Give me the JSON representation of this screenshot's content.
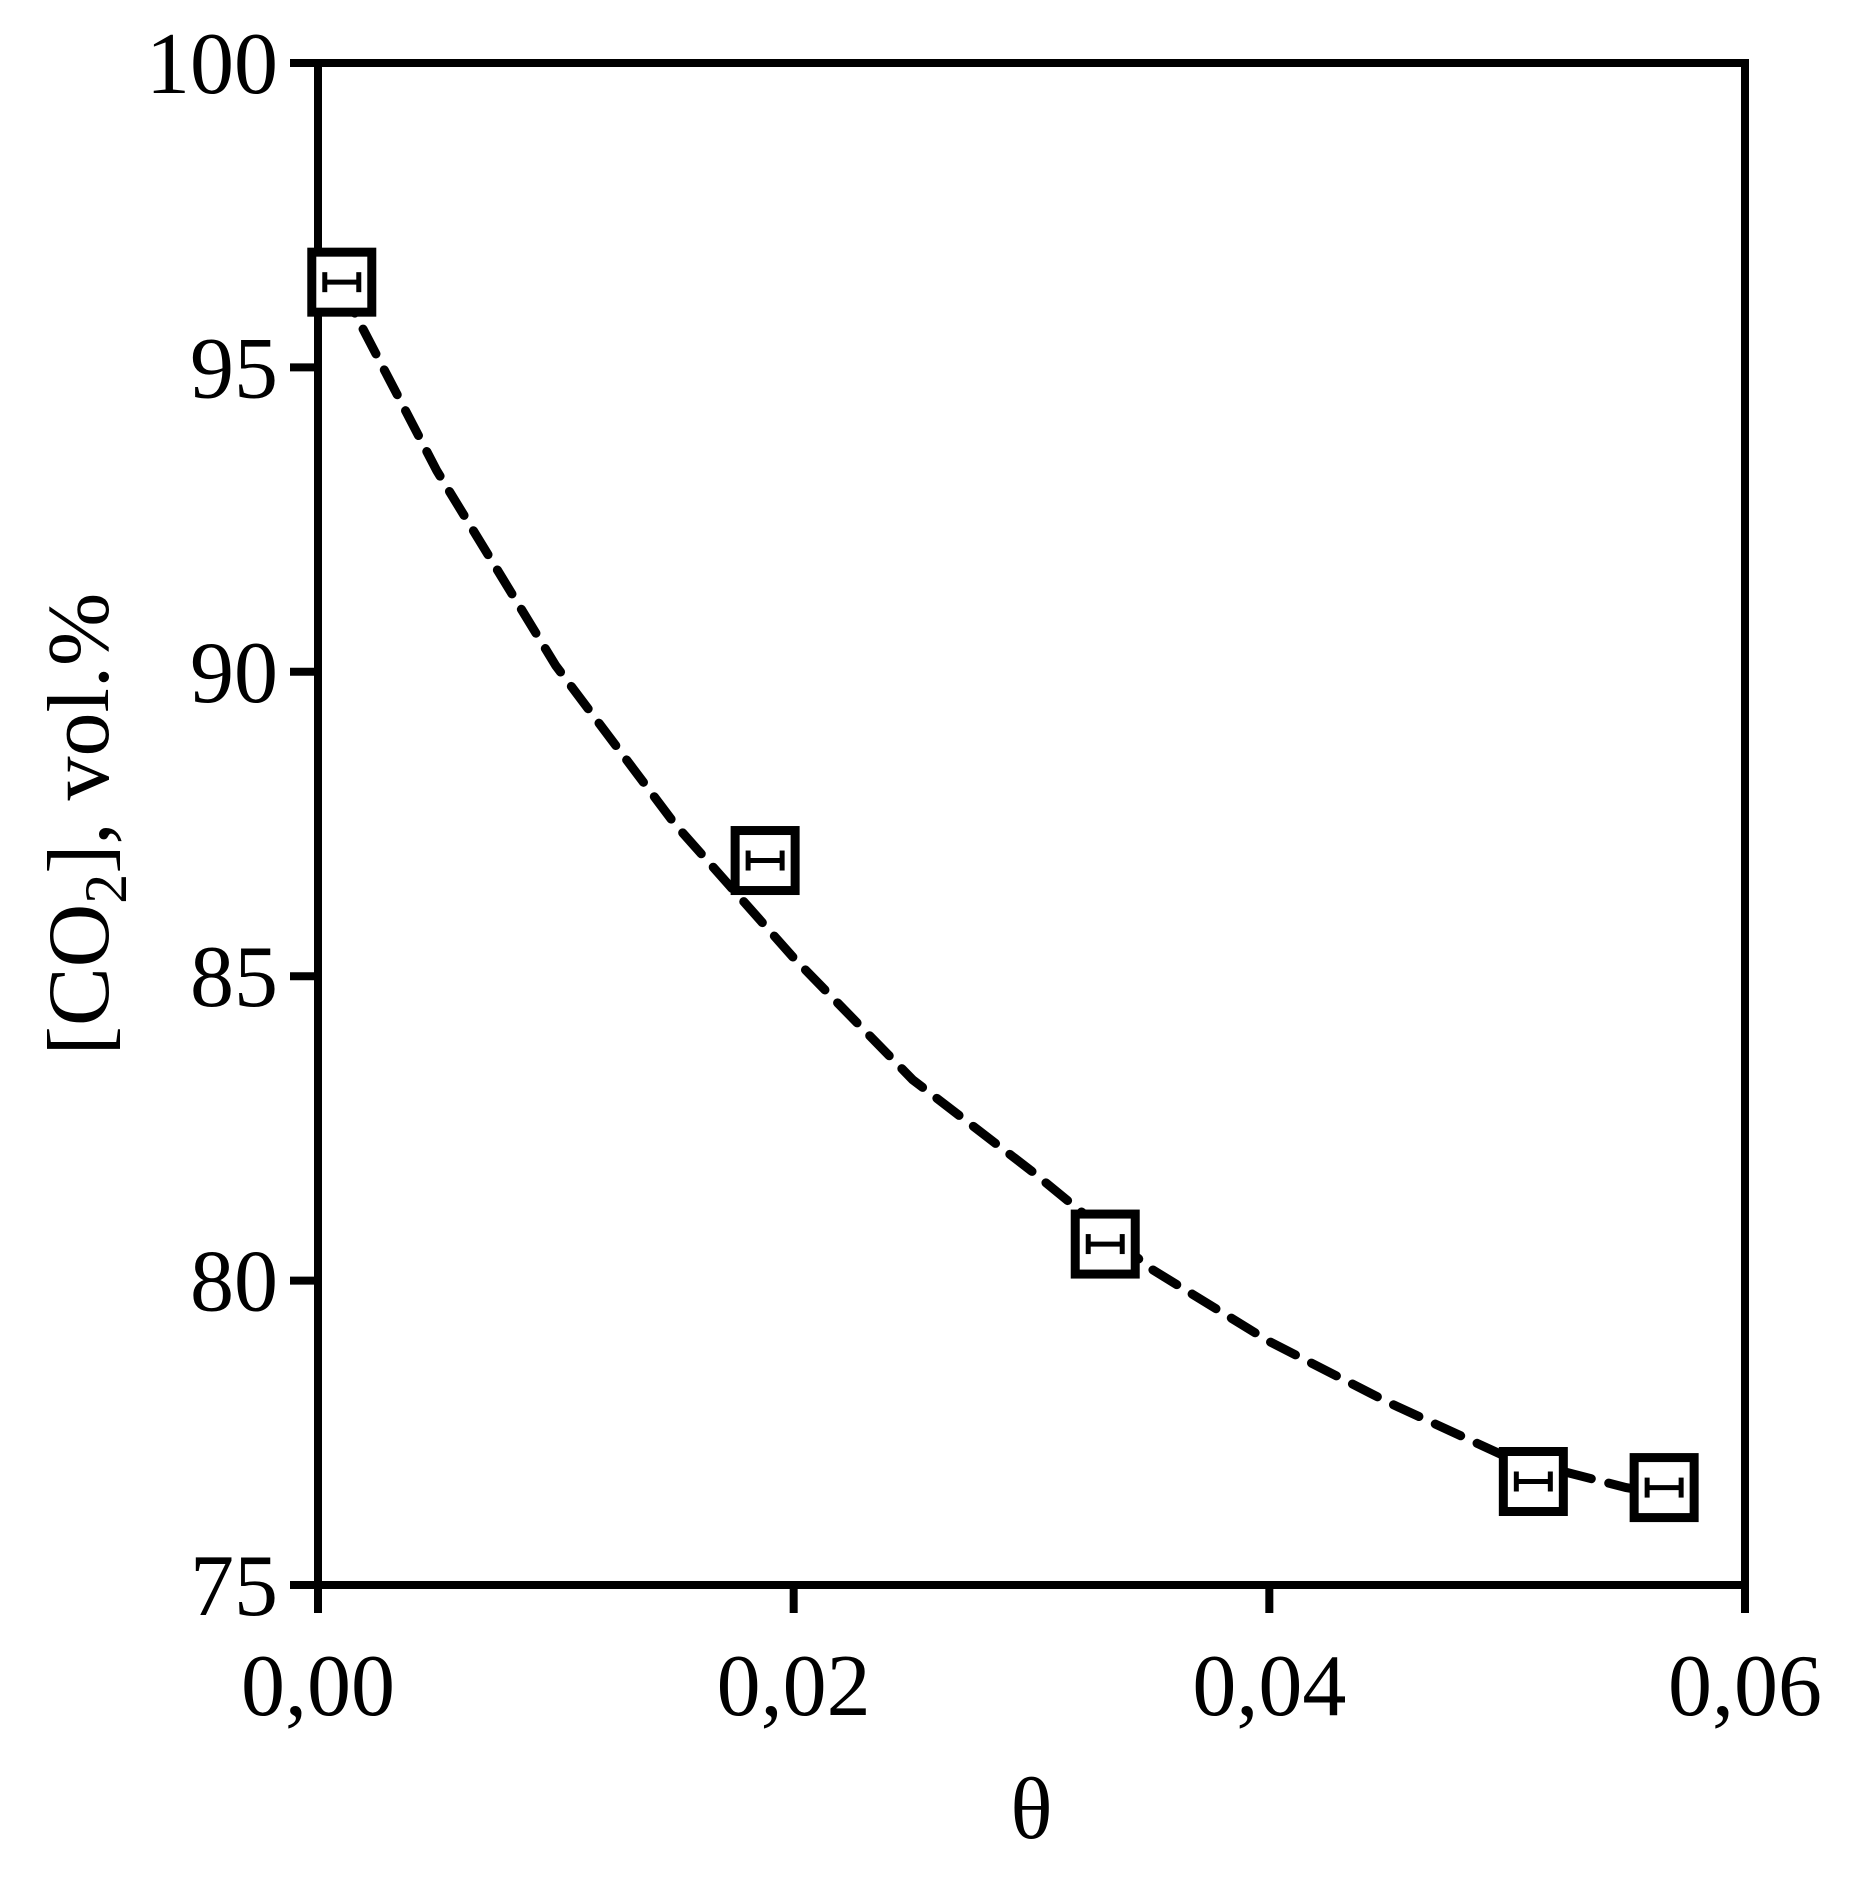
{
  "chart_data": {
    "type": "scatter",
    "title": "",
    "xlabel": "θ",
    "ylabel": {
      "prefix": "[CO",
      "subscript": "2",
      "suffix": "], vol.%"
    },
    "xlim": [
      0,
      0.06
    ],
    "ylim": [
      75,
      100
    ],
    "x_ticks": [
      0,
      0.02,
      0.04,
      0.06
    ],
    "x_tick_labels": [
      "0,00",
      "0,02",
      "0,04",
      "0,06"
    ],
    "y_ticks": [
      75,
      80,
      85,
      90,
      95,
      100
    ],
    "y_tick_labels": [
      "75",
      "80",
      "85",
      "90",
      "95",
      "100"
    ],
    "grid": false,
    "legend": "none",
    "series": [
      {
        "marker": "square",
        "x": [
          0.001,
          0.0188,
          0.0331,
          0.0511,
          0.0566
        ],
        "y": [
          96.4,
          86.9,
          80.6,
          76.7,
          76.6
        ],
        "error_bars": "horizontal"
      }
    ],
    "trendline": {
      "style": "dashed",
      "x": [
        0.001,
        0.005,
        0.01,
        0.015,
        0.02,
        0.025,
        0.03,
        0.035,
        0.04,
        0.045,
        0.05,
        0.055,
        0.0566
      ],
      "y": [
        96.3,
        93.3,
        90.1,
        87.5,
        85.3,
        83.3,
        81.8,
        80.2,
        79.0,
        78.0,
        77.1,
        76.6,
        76.5
      ]
    },
    "colors": {
      "axis": "#000000",
      "marker": "#000000",
      "line": "#000000"
    }
  }
}
